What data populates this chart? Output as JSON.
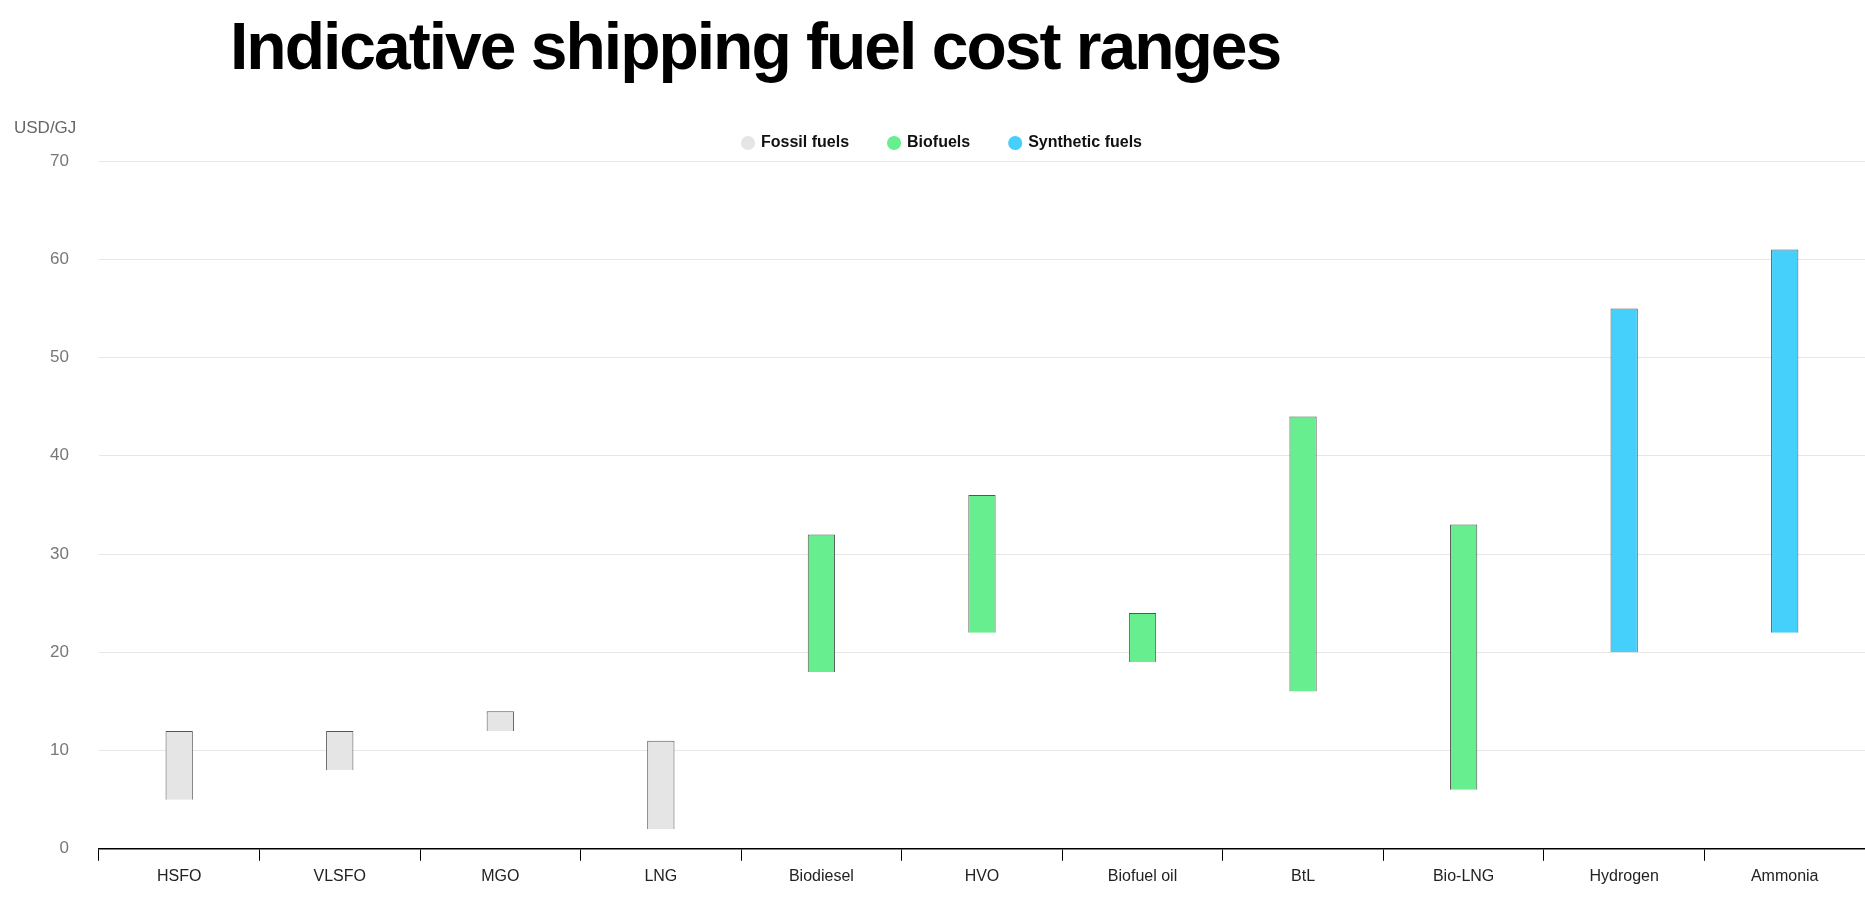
{
  "chart_data": {
    "type": "bar",
    "title": "Indicative shipping fuel cost ranges",
    "ylabel": "USD/GJ",
    "categories": [
      "HSFO",
      "VLSFO",
      "MGO",
      "LNG",
      "Biodiesel",
      "HVO",
      "Biofuel oil",
      "BtL",
      "Bio-LNG",
      "Hydrogen",
      "Ammonia"
    ],
    "series": [
      {
        "name": "Fossil fuels",
        "color": "#e5e5e5",
        "base": [
          5,
          8,
          12,
          2,
          null,
          null,
          null,
          null,
          null,
          null,
          null
        ],
        "values": [
          7,
          4,
          2,
          9,
          null,
          null,
          null,
          null,
          null,
          null,
          null
        ]
      },
      {
        "name": "Biofuels",
        "color": "#66ee8f",
        "base": [
          null,
          null,
          null,
          null,
          18,
          22,
          19,
          16,
          6,
          null,
          null
        ],
        "values": [
          null,
          null,
          null,
          null,
          14,
          14,
          5,
          28,
          27,
          null,
          null
        ]
      },
      {
        "name": "Synthetic fuels",
        "color": "#44d0fa",
        "base": [
          null,
          null,
          null,
          null,
          null,
          null,
          null,
          null,
          null,
          20,
          22
        ],
        "values": [
          null,
          null,
          null,
          null,
          null,
          null,
          null,
          null,
          null,
          35,
          39
        ]
      }
    ],
    "ylim": [
      0,
      70
    ],
    "yticks": [
      0,
      10,
      20,
      30,
      40,
      50,
      60,
      70
    ],
    "grid": "y",
    "legend": "top"
  }
}
